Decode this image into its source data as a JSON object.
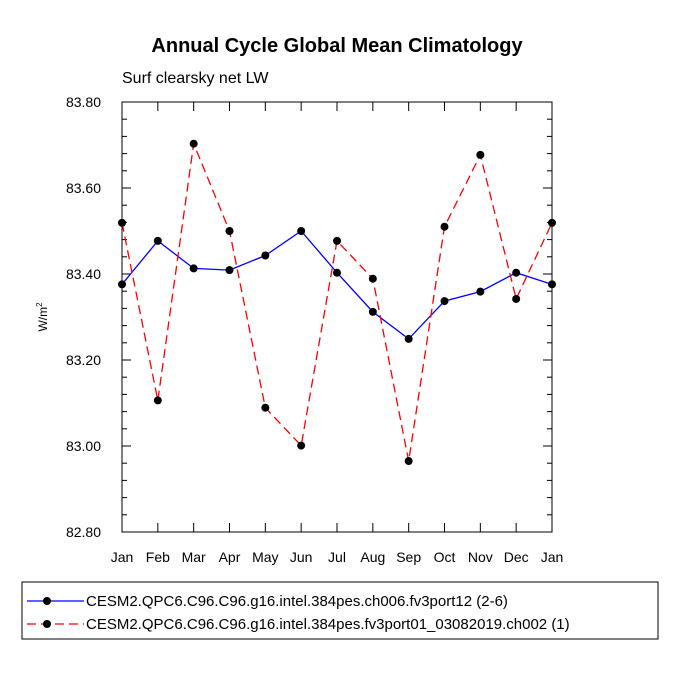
{
  "chart_data": {
    "type": "line",
    "title": "Annual Cycle Global Mean Climatology",
    "subtitle": "Surf clearsky net LW",
    "ylabel": "W/m",
    "ylabel_sup": "2",
    "xlabel": "",
    "ylim": [
      82.8,
      83.8
    ],
    "yticks": [
      82.8,
      83.0,
      83.2,
      83.4,
      83.6,
      83.8
    ],
    "ytick_labels": [
      "82.80",
      "83.00",
      "83.20",
      "83.40",
      "83.60",
      "83.80"
    ],
    "categories": [
      "Jan",
      "Feb",
      "Mar",
      "Apr",
      "May",
      "Jun",
      "Jul",
      "Aug",
      "Sep",
      "Oct",
      "Nov",
      "Dec",
      "Jan"
    ],
    "grid": false,
    "legend_position": "bottom",
    "series": [
      {
        "name": "CESM2.QPC6.C96.C96.g16.intel.384pes.ch006.fv3port12 (2-6)",
        "color": "#0000ff",
        "dash": "solid",
        "values": [
          83.376,
          83.477,
          83.413,
          83.409,
          83.443,
          83.5,
          83.403,
          83.312,
          83.249,
          83.337,
          83.359,
          83.403,
          83.376
        ]
      },
      {
        "name": "CESM2.QPC6.C96.C96.g16.intel.384pes.fv3port01_03082019.ch002 (1)",
        "color": "#ff0000",
        "dash": "dashed",
        "values": [
          83.519,
          83.106,
          83.703,
          83.5,
          83.089,
          83.001,
          83.477,
          83.389,
          82.965,
          83.51,
          83.677,
          83.342,
          83.519
        ]
      }
    ]
  }
}
